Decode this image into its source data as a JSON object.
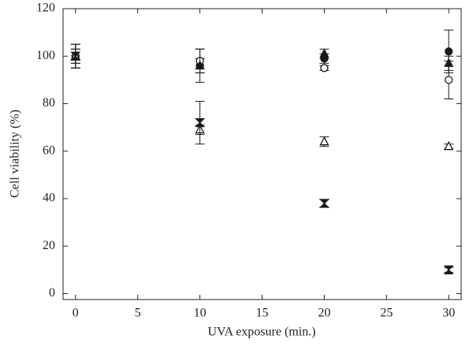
{
  "chart_data": {
    "type": "scatter",
    "xlabel": "UVA exposure (min.)",
    "ylabel": "Cell viability (%)",
    "x": [
      0,
      10,
      20,
      30
    ],
    "series": [
      {
        "marker": "circle",
        "filled": true,
        "color": "#1a1a1a",
        "values": [
          100,
          96,
          99,
          102
        ],
        "errors": [
          5,
          3,
          2,
          9
        ]
      },
      {
        "marker": "circle",
        "filled": false,
        "color": "#1a1a1a",
        "values": [
          100,
          98,
          95,
          90
        ],
        "errors": [
          5,
          5,
          1,
          8
        ]
      },
      {
        "marker": "triangle",
        "filled": true,
        "color": "#1a1a1a",
        "values": [
          100,
          96,
          101,
          97
        ],
        "errors": [
          5,
          7,
          2,
          3
        ]
      },
      {
        "marker": "triangle",
        "filled": false,
        "color": "#1a1a1a",
        "values": [
          100,
          69,
          64,
          62
        ],
        "errors": [
          3,
          2,
          2,
          1
        ]
      },
      {
        "marker": "bowtie",
        "filled": true,
        "color": "#1a1a1a",
        "values": [
          100,
          72,
          38,
          10
        ],
        "errors": [
          3,
          9,
          1.5,
          1
        ]
      }
    ],
    "xlim": [
      -1,
      31
    ],
    "ylim": [
      -2.5,
      120
    ],
    "xticks": [
      0,
      5,
      10,
      15,
      20,
      25,
      30
    ],
    "yticks": [
      0,
      20,
      40,
      60,
      80,
      100,
      120
    ]
  }
}
